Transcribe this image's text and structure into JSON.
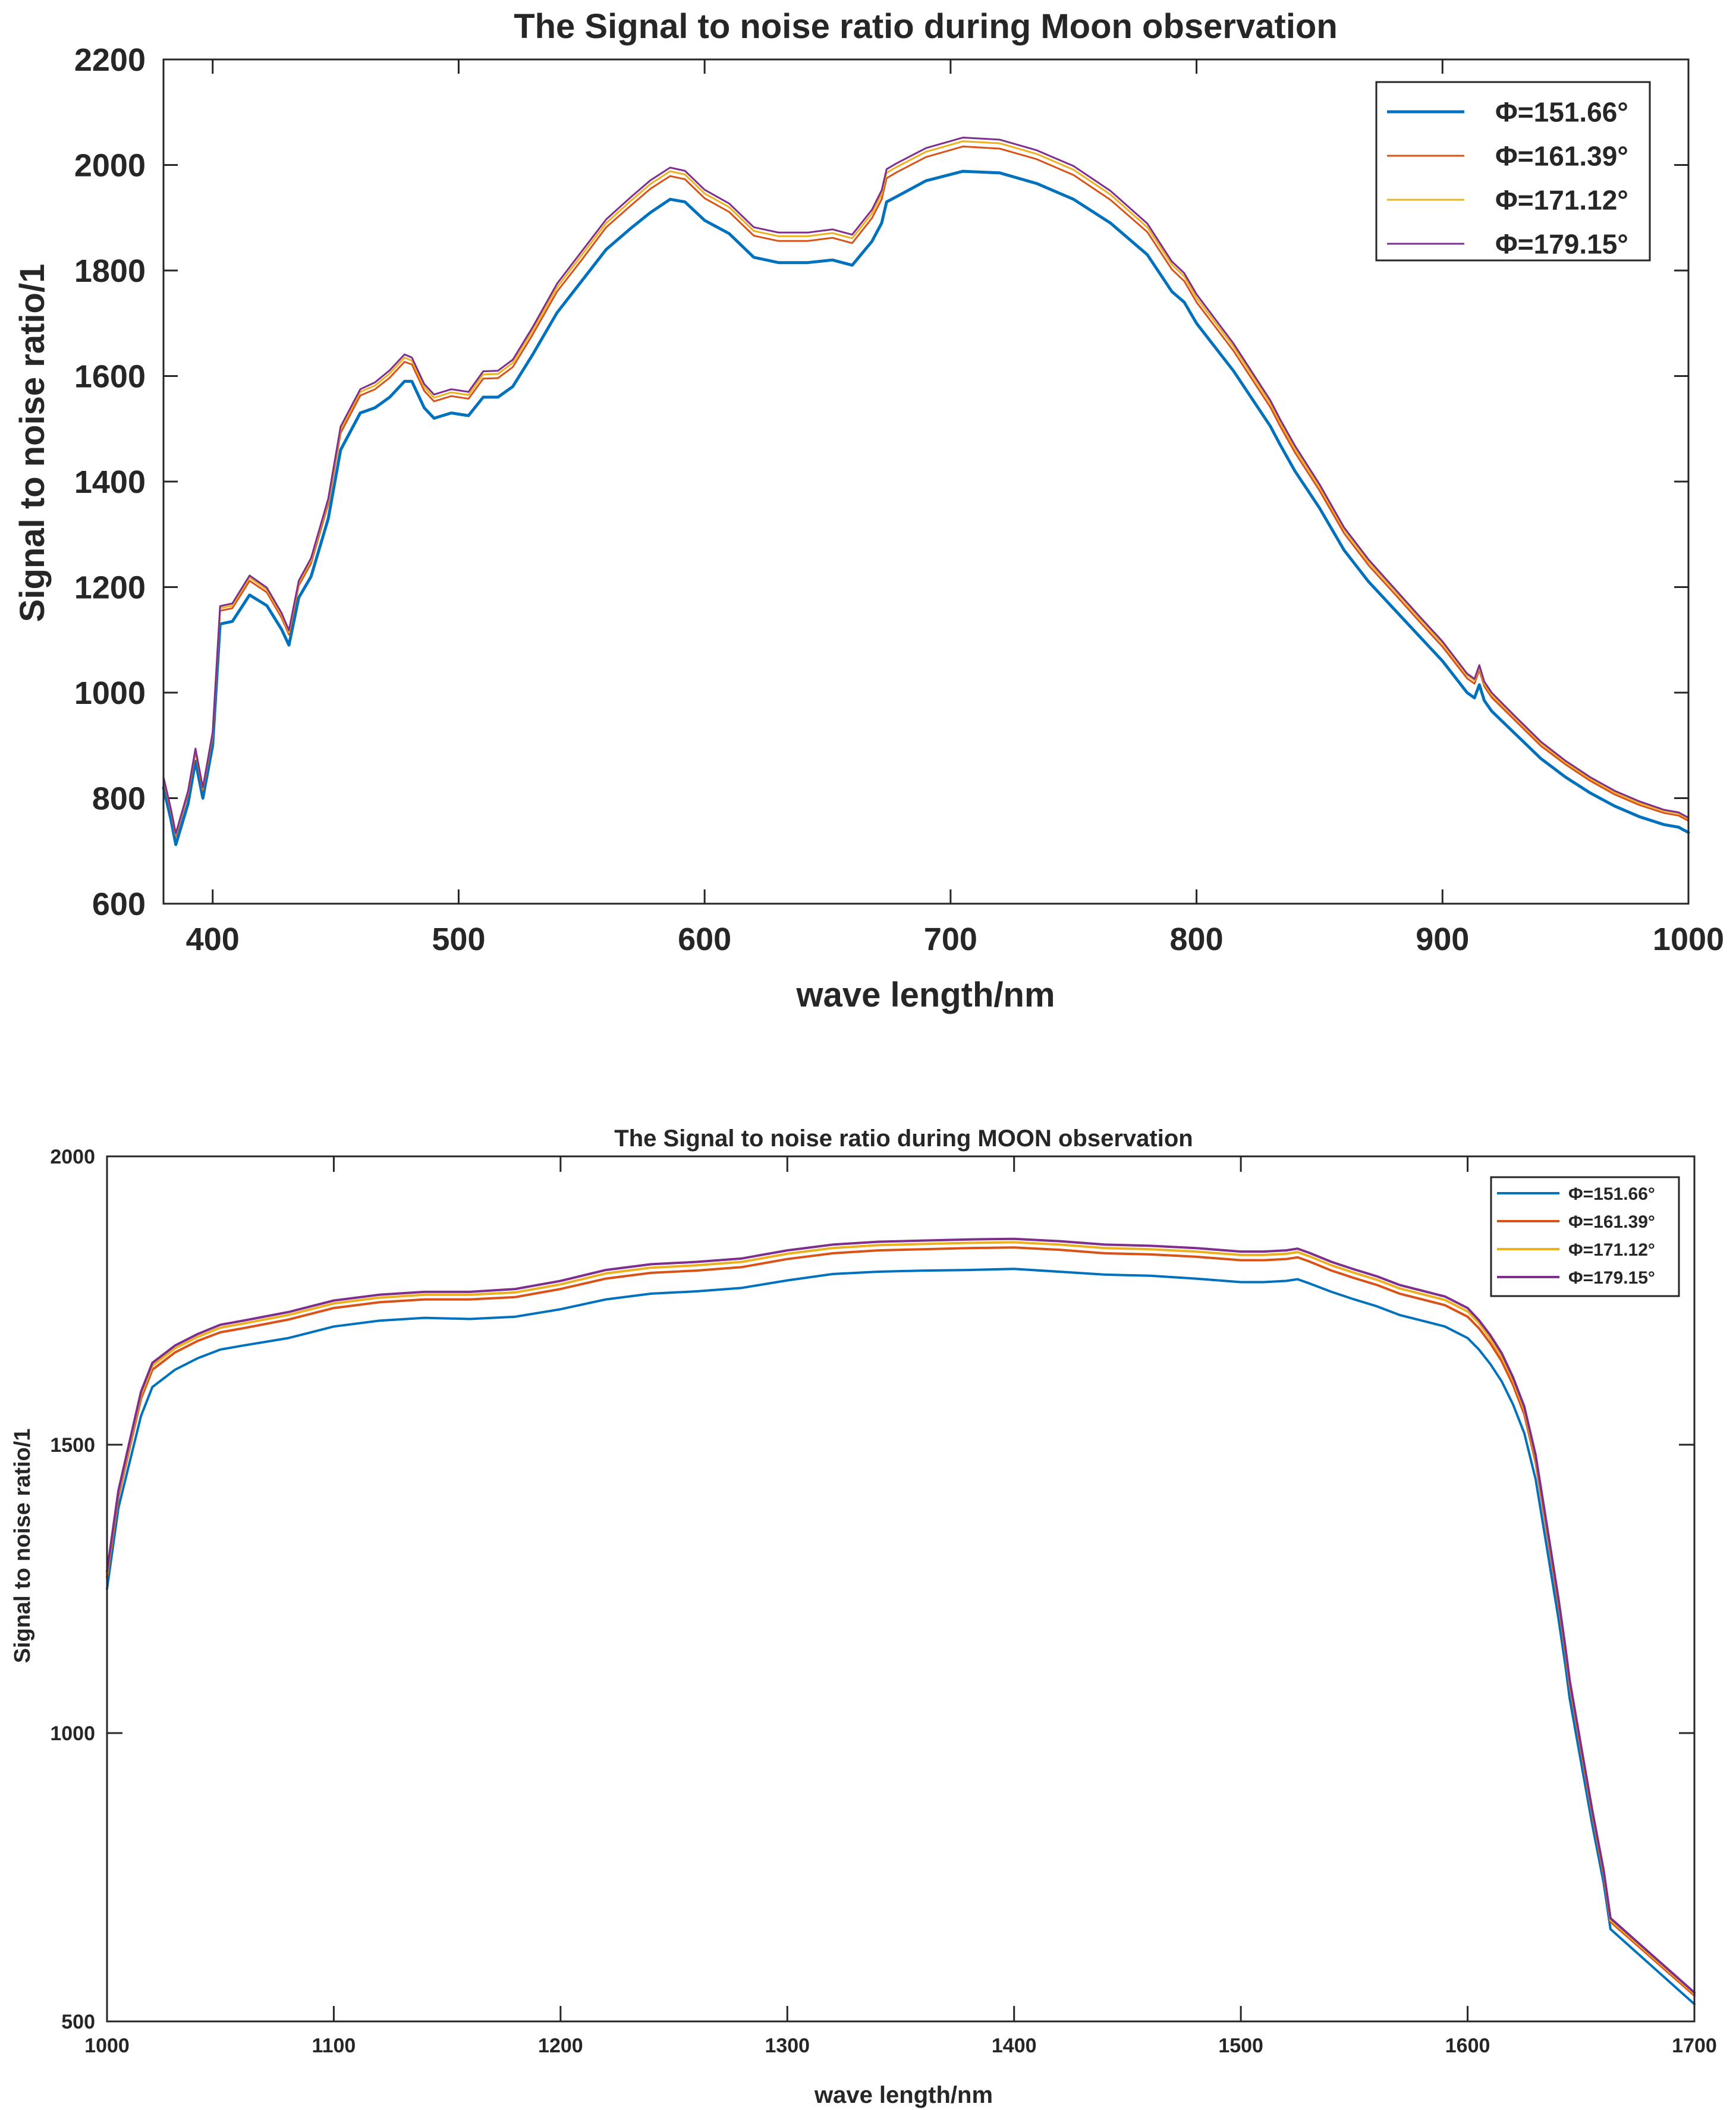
{
  "chart_data": [
    {
      "type": "line",
      "title": "The Signal to noise ratio during Moon observation",
      "xlabel": "wave length/nm",
      "ylabel": "Signal to noise ratio/1",
      "xlim": [
        380,
        1000
      ],
      "ylim": [
        600,
        2200
      ],
      "xticks": [
        400,
        500,
        600,
        700,
        800,
        900,
        1000
      ],
      "yticks": [
        600,
        800,
        1000,
        1200,
        1400,
        1600,
        1800,
        2000,
        2200
      ],
      "grid": false,
      "legend_position": "top-right",
      "colors": [
        "#0072BD",
        "#D95319",
        "#EDB120",
        "#7E2F8E"
      ],
      "x": [
        380,
        383,
        385,
        390,
        393,
        396,
        400,
        403,
        408,
        415,
        422,
        428,
        431,
        435,
        440,
        447,
        452,
        460,
        466,
        472,
        478,
        481,
        486,
        490,
        497,
        504,
        510,
        516,
        522,
        530,
        540,
        550,
        560,
        570,
        578,
        586,
        592,
        600,
        610,
        620,
        630,
        642,
        652,
        660,
        668,
        672,
        674,
        678,
        690,
        705,
        720,
        735,
        750,
        765,
        780,
        790,
        795,
        800,
        815,
        830,
        834,
        840,
        850,
        860,
        870,
        880,
        890,
        900,
        910,
        913,
        915,
        917,
        920,
        930,
        940,
        950,
        960,
        970,
        980,
        990,
        996,
        998,
        1000
      ],
      "series": [
        {
          "name": "Φ=151.66°",
          "values": [
            820,
            760,
            712,
            790,
            870,
            800,
            900,
            1130,
            1135,
            1185,
            1165,
            1120,
            1090,
            1180,
            1220,
            1330,
            1460,
            1530,
            1540,
            1560,
            1590,
            1590,
            1540,
            1520,
            1530,
            1525,
            1560,
            1560,
            1580,
            1640,
            1720,
            1780,
            1840,
            1880,
            1910,
            1935,
            1930,
            1895,
            1870,
            1825,
            1815,
            1815,
            1820,
            1810,
            1855,
            1890,
            1930,
            1940,
            1970,
            1988,
            1985,
            1965,
            1935,
            1890,
            1830,
            1760,
            1740,
            1700,
            1610,
            1505,
            1470,
            1420,
            1350,
            1270,
            1210,
            1160,
            1110,
            1060,
            1000,
            990,
            1015,
            985,
            965,
            920,
            875,
            840,
            810,
            785,
            765,
            750,
            745,
            740,
            735
          ]
        },
        {
          "name": "Φ=161.39°",
          "values": [
            835,
            775,
            728,
            808,
            888,
            815,
            918,
            1155,
            1160,
            1212,
            1190,
            1142,
            1110,
            1203,
            1245,
            1358,
            1492,
            1563,
            1575,
            1597,
            1627,
            1622,
            1572,
            1552,
            1562,
            1557,
            1595,
            1596,
            1617,
            1678,
            1760,
            1820,
            1882,
            1923,
            1955,
            1979,
            1973,
            1937,
            1911,
            1866,
            1856,
            1856,
            1862,
            1852,
            1899,
            1935,
            1975,
            1986,
            2015,
            2035,
            2031,
            2011,
            1981,
            1934,
            1873,
            1802,
            1780,
            1740,
            1648,
            1541,
            1505,
            1455,
            1383,
            1302,
            1241,
            1190,
            1138,
            1087,
            1027,
            1017,
            1043,
            1012,
            991,
            945,
            899,
            864,
            833,
            807,
            787,
            772,
            767,
            762,
            757
          ]
        },
        {
          "name": "Φ=171.12°",
          "values": [
            838,
            778,
            731,
            812,
            892,
            818,
            922,
            1160,
            1165,
            1218,
            1195,
            1147,
            1114,
            1208,
            1251,
            1364,
            1499,
            1570,
            1582,
            1605,
            1635,
            1629,
            1579,
            1559,
            1569,
            1564,
            1603,
            1604,
            1625,
            1686,
            1768,
            1829,
            1890,
            1932,
            1964,
            1988,
            1982,
            1946,
            1920,
            1875,
            1865,
            1865,
            1871,
            1861,
            1908,
            1945,
            1985,
            1996,
            2025,
            2045,
            2041,
            2021,
            1991,
            1944,
            1882,
            1811,
            1789,
            1748,
            1656,
            1548,
            1512,
            1462,
            1390,
            1309,
            1247,
            1196,
            1144,
            1093,
            1033,
            1023,
            1048,
            1017,
            996,
            950,
            904,
            868,
            837,
            811,
            791,
            776,
            771,
            766,
            761
          ]
        },
        {
          "name": "Φ=179.15°",
          "values": [
            840,
            780,
            733,
            814,
            894,
            820,
            925,
            1164,
            1169,
            1222,
            1199,
            1151,
            1118,
            1212,
            1255,
            1368,
            1504,
            1575,
            1588,
            1611,
            1641,
            1635,
            1585,
            1565,
            1575,
            1570,
            1609,
            1610,
            1631,
            1692,
            1775,
            1836,
            1897,
            1939,
            1971,
            1995,
            1989,
            1953,
            1927,
            1882,
            1872,
            1872,
            1878,
            1868,
            1915,
            1952,
            1992,
            2003,
            2032,
            2052,
            2048,
            2028,
            1998,
            1951,
            1889,
            1817,
            1795,
            1755,
            1662,
            1554,
            1518,
            1468,
            1395,
            1313,
            1252,
            1200,
            1148,
            1097,
            1036,
            1026,
            1052,
            1021,
            1000,
            953,
            907,
            871,
            840,
            814,
            794,
            778,
            773,
            768,
            763
          ]
        }
      ]
    },
    {
      "type": "line",
      "title": "The Signal to noise ratio during MOON observation",
      "xlabel": "wave length/nm",
      "ylabel": "Signal to noise ratio/1",
      "xlim": [
        1000,
        1700
      ],
      "ylim": [
        500,
        2000
      ],
      "xticks": [
        1000,
        1100,
        1200,
        1300,
        1400,
        1500,
        1600,
        1700
      ],
      "yticks": [
        500,
        1000,
        1500,
        2000
      ],
      "grid": false,
      "legend_position": "top-right",
      "colors": [
        "#0072BD",
        "#D95319",
        "#EDB120",
        "#7E2F8E"
      ],
      "x": [
        1000,
        1005,
        1010,
        1015,
        1020,
        1030,
        1040,
        1050,
        1060,
        1080,
        1100,
        1120,
        1140,
        1160,
        1180,
        1200,
        1220,
        1240,
        1260,
        1280,
        1300,
        1320,
        1340,
        1360,
        1380,
        1400,
        1420,
        1440,
        1460,
        1480,
        1500,
        1510,
        1520,
        1525,
        1530,
        1540,
        1550,
        1560,
        1570,
        1580,
        1590,
        1600,
        1605,
        1610,
        1615,
        1620,
        1625,
        1630,
        1635,
        1640,
        1643,
        1645,
        1650,
        1655,
        1660,
        1663,
        1700
      ],
      "series": [
        {
          "name": "Φ=151.66°",
          "values": [
            1250,
            1390,
            1470,
            1550,
            1600,
            1630,
            1650,
            1665,
            1672,
            1685,
            1705,
            1715,
            1720,
            1718,
            1722,
            1735,
            1752,
            1762,
            1766,
            1772,
            1785,
            1796,
            1800,
            1802,
            1803,
            1805,
            1800,
            1795,
            1793,
            1788,
            1782,
            1782,
            1784,
            1787,
            1780,
            1765,
            1752,
            1740,
            1725,
            1715,
            1705,
            1685,
            1665,
            1640,
            1610,
            1570,
            1520,
            1440,
            1320,
            1200,
            1120,
            1060,
            950,
            840,
            740,
            660,
            530
          ]
        },
        {
          "name": "Φ=161.39°",
          "values": [
            1270,
            1410,
            1495,
            1580,
            1630,
            1660,
            1680,
            1695,
            1702,
            1717,
            1737,
            1747,
            1752,
            1752,
            1756,
            1770,
            1788,
            1798,
            1802,
            1808,
            1822,
            1832,
            1837,
            1839,
            1841,
            1842,
            1838,
            1832,
            1830,
            1826,
            1820,
            1820,
            1822,
            1825,
            1818,
            1802,
            1789,
            1777,
            1762,
            1752,
            1742,
            1722,
            1702,
            1676,
            1645,
            1604,
            1553,
            1470,
            1348,
            1225,
            1143,
            1083,
            970,
            858,
            755,
            673,
            545
          ]
        },
        {
          "name": "Φ=171.12°",
          "values": [
            1275,
            1416,
            1501,
            1587,
            1637,
            1667,
            1687,
            1703,
            1710,
            1725,
            1745,
            1755,
            1760,
            1760,
            1764,
            1778,
            1797,
            1807,
            1811,
            1817,
            1831,
            1841,
            1846,
            1848,
            1850,
            1851,
            1847,
            1841,
            1839,
            1835,
            1829,
            1829,
            1831,
            1834,
            1827,
            1811,
            1798,
            1786,
            1771,
            1761,
            1751,
            1731,
            1711,
            1684,
            1653,
            1612,
            1561,
            1477,
            1354,
            1231,
            1148,
            1088,
            974,
            862,
            759,
            676,
            548
          ]
        },
        {
          "name": "Φ=179.15°",
          "values": [
            1280,
            1420,
            1506,
            1592,
            1642,
            1672,
            1692,
            1708,
            1715,
            1730,
            1750,
            1760,
            1765,
            1765,
            1770,
            1784,
            1803,
            1813,
            1817,
            1823,
            1837,
            1847,
            1852,
            1854,
            1856,
            1857,
            1853,
            1847,
            1845,
            1841,
            1835,
            1835,
            1837,
            1840,
            1833,
            1817,
            1804,
            1792,
            1777,
            1767,
            1757,
            1737,
            1716,
            1690,
            1659,
            1617,
            1566,
            1482,
            1359,
            1235,
            1152,
            1092,
            978,
            865,
            762,
            679,
            550
          ]
        }
      ]
    }
  ]
}
